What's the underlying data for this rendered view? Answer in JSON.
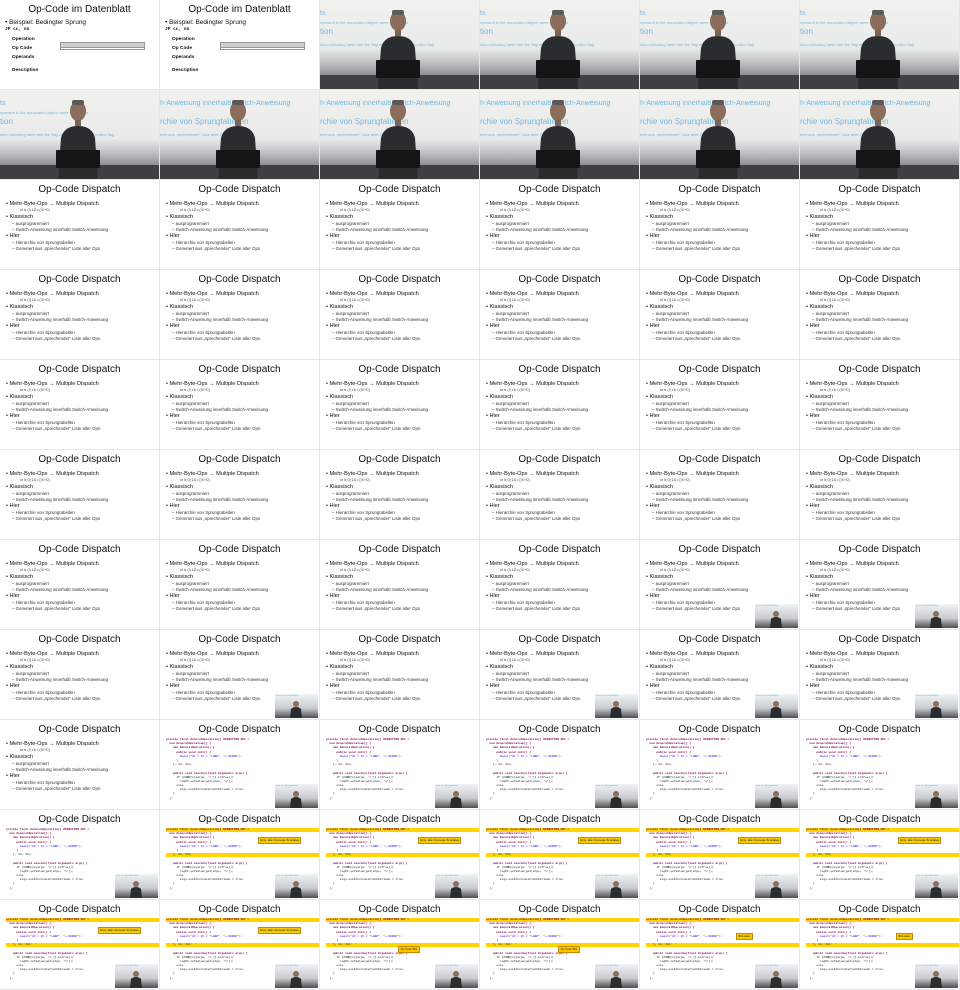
{
  "slides": {
    "datasheet": {
      "title": "Op-Code im Datenblatt",
      "bullet": "Beispiel: Bedingter Sprung",
      "instruction": "JP cc, nn",
      "sections": [
        "Operation",
        "Op Code",
        "Operands",
        "Description"
      ]
    },
    "dispatch": {
      "title": "Op-Code Dispatch",
      "items": [
        {
          "text": "Mehr-Byte-Ops → Multiple Dispatch",
          "level": 1
        },
        {
          "text": "Klassisch",
          "level": 1
        },
        {
          "text": "ausprogrammiert",
          "level": 2
        },
        {
          "text": "Switch-Anweisung innerhalb Switch-Anweisung",
          "level": 2
        },
        {
          "text": "Hier",
          "level": 1
        },
        {
          "text": "Hierarchie von Sprungtabellen",
          "level": 2
        },
        {
          "text": "Generiert aus „sprechender“ Liste aller Ops",
          "level": 2
        }
      ],
      "sub_line": "ld ix (I)          LD r,(IX+D)"
    },
    "code": {
      "title": "Op-Code Dispatch",
      "lines": [
        "private final GeneralOperation[] OPERATION_SET =",
        "  new GeneralOperation[] {",
        "    new GeneralOperation() {",
        "      public void init() {",
        "        bwait(\"AF = IX = \"LHBD\", \"+-DDDDD\");",
        "      }",
        "    }, 14, 14);",
        "",
        "    public void execute(final Arguments args) {",
        "      if (COND[cp(args, 'c')].isTrue())",
        "        regPC.setValue(get(args, 'n'));",
        "      else",
        "        args.useAlternateClockPeriods = true;",
        "    }",
        "  };"
      ],
      "notes": [
        "Emp. aller Op-Code-Templates",
        "Op-Code Bits",
        "Bitmaske"
      ]
    }
  },
  "projector": {
    "line1": "ts",
    "line2": "operand is the associated object name of a 3-byte",
    "line3": "tion",
    "line4": "ution including table with the flag combinations for all control flag",
    "line5": "h-Anweisung innerhalb Switch-Anweisung",
    "line6": "rchie von Sprungtabellen",
    "line7": "riert aus „sprechender“ Liste aller Ops"
  },
  "tiles": [
    "ds",
    "ds",
    "video1",
    "video1",
    "video1",
    "video1",
    "video1",
    "video2",
    "video2",
    "video2",
    "video2",
    "video2",
    "disp",
    "disp",
    "disp",
    "disp",
    "disp",
    "disp",
    "disp",
    "disp",
    "disp",
    "disp",
    "disp",
    "disp",
    "disp",
    "disp",
    "disp",
    "disp",
    "disp",
    "disp",
    "disp",
    "disp",
    "disp",
    "disp",
    "disp",
    "disp",
    "disp",
    "disp",
    "disp",
    "disp",
    "disp+pip",
    "disp+pip",
    "disp",
    "disp+pip",
    "disp",
    "disp+pip",
    "disp+pip",
    "disp+pip",
    "disp",
    "code+pip",
    "code+pip",
    "code+pip",
    "code+pip",
    "code+pip",
    "code+pip",
    "code+note0+pip",
    "code+note0+pip",
    "code+note0+pip",
    "code+note0+pip",
    "code+note0+pip",
    "code+note0+pip",
    "code+note0+pip",
    "code+note1+pip",
    "code+note1+pip",
    "code+note2+pip",
    "code+note2+pip"
  ]
}
